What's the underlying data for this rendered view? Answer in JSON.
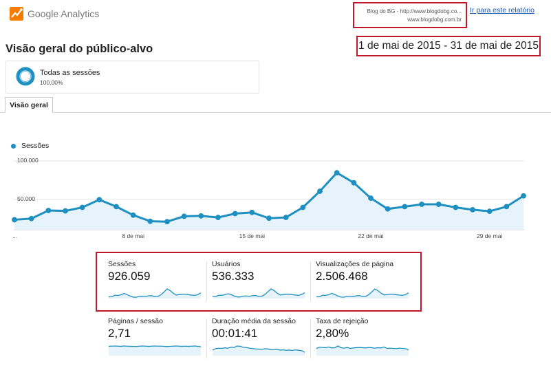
{
  "header": {
    "product_name": "Google Analytics",
    "account_line1": "Blog do BG - http://www.blogdobg.co...",
    "account_line2": "www.blogdobg.com.br",
    "report_link": "Ir para este relatório"
  },
  "page_title": "Visão geral do público-alvo",
  "date_range": "1 de mai de 2015 - 31 de mai de 2015",
  "segment": {
    "name": "Todas as sessões",
    "percent": "100,00%",
    "percent_value": 100
  },
  "tabs": [
    {
      "label": "Visão geral",
      "active": true
    }
  ],
  "colors": {
    "accent": "#1d8fc0",
    "highlight_box": "#c0182a",
    "link": "#1a56b0"
  },
  "chart_data": {
    "type": "area",
    "series": [
      {
        "name": "Sessões",
        "values": [
          13000,
          14500,
          25000,
          24500,
          29000,
          39000,
          30000,
          19000,
          11000,
          10500,
          17500,
          18000,
          16000,
          21000,
          22500,
          15000,
          16000,
          29000,
          50000,
          74000,
          61000,
          41000,
          27000,
          30000,
          33000,
          33000,
          29000,
          26000,
          24000,
          30000,
          44000
        ]
      }
    ],
    "x": [
      "1 de mai",
      "2 de mai",
      "3 de mai",
      "4 de mai",
      "5 de mai",
      "6 de mai",
      "7 de mai",
      "8 de mai",
      "9 de mai",
      "10 de mai",
      "11 de mai",
      "12 de mai",
      "13 de mai",
      "14 de mai",
      "15 de mai",
      "16 de mai",
      "17 de mai",
      "18 de mai",
      "19 de mai",
      "20 de mai",
      "21 de mai",
      "22 de mai",
      "23 de mai",
      "24 de mai",
      "25 de mai",
      "26 de mai",
      "27 de mai",
      "28 de mai",
      "29 de mai",
      "30 de mai",
      "31 de mai"
    ],
    "ytick_labels": [
      "100.000",
      "50.000"
    ],
    "yticks": [
      100000,
      50000
    ],
    "ylim": [
      0,
      100000
    ],
    "xtick_labels": [
      "...",
      "8 de mai",
      "15 de mai",
      "22 de mai",
      "29 de mai"
    ],
    "xtick_index": [
      0,
      7,
      14,
      21,
      28
    ],
    "grid": true
  },
  "metrics": [
    {
      "label": "Sessões",
      "value": "926.059",
      "trend": [
        13,
        14,
        25,
        24,
        29,
        39,
        30,
        19,
        11,
        10,
        17,
        18,
        16,
        21,
        22,
        15,
        16,
        29,
        50,
        74,
        61,
        41,
        27,
        30,
        33,
        33,
        29,
        26,
        24,
        30,
        44
      ]
    },
    {
      "label": "Usuários",
      "value": "536.333",
      "trend": [
        12,
        13,
        20,
        20,
        24,
        30,
        25,
        16,
        10,
        10,
        15,
        16,
        14,
        18,
        19,
        13,
        14,
        25,
        42,
        60,
        50,
        34,
        22,
        25,
        27,
        27,
        24,
        22,
        20,
        25,
        36
      ]
    },
    {
      "label": "Visualizações de página",
      "value": "2.506.468",
      "trend": [
        14,
        15,
        27,
        26,
        31,
        42,
        32,
        20,
        12,
        11,
        18,
        19,
        17,
        22,
        24,
        16,
        17,
        31,
        53,
        78,
        64,
        44,
        29,
        32,
        35,
        35,
        31,
        28,
        26,
        32,
        46
      ]
    },
    {
      "label": "Páginas / sessão",
      "value": "2,71",
      "trend": [
        50,
        51,
        52,
        51,
        50,
        52,
        51,
        50,
        50,
        49,
        51,
        52,
        51,
        50,
        51,
        52,
        51,
        51,
        50,
        49,
        50,
        51,
        52,
        51,
        50,
        51,
        50,
        51,
        52,
        50,
        48
      ]
    },
    {
      "label": "Duração média da sessão",
      "value": "00:01:41",
      "trend": [
        30,
        38,
        40,
        39,
        42,
        40,
        46,
        44,
        52,
        50,
        45,
        44,
        40,
        38,
        36,
        35,
        34,
        37,
        36,
        32,
        33,
        34,
        30,
        31,
        29,
        30,
        28,
        31,
        29,
        27,
        18
      ]
    },
    {
      "label": "Taxa de rejeição",
      "value": "2,80%",
      "trend": [
        30,
        35,
        34,
        33,
        36,
        32,
        33,
        40,
        33,
        31,
        34,
        30,
        32,
        33,
        34,
        33,
        32,
        34,
        33,
        31,
        33,
        32,
        36,
        30,
        31,
        30,
        29,
        31,
        30,
        29,
        24
      ]
    }
  ]
}
